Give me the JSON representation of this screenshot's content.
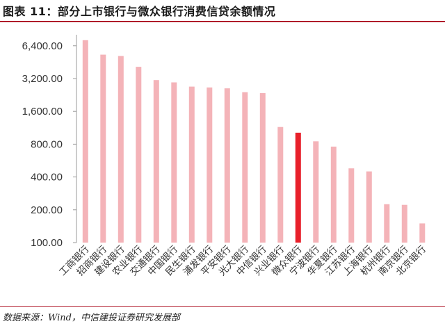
{
  "header": {
    "title": "图表 11：部分上市银行与微众银行消费信贷余额情况"
  },
  "footer": {
    "source": "数据来源：Wind，中信建投证券研究发展部"
  },
  "colors": {
    "bar": "#f4b3b8",
    "highlight": "#e8202a",
    "accent": "#b0192a",
    "axis": "#999999"
  },
  "chart_data": {
    "type": "bar",
    "title": "",
    "xlabel": "",
    "ylabel": "",
    "y_scale": "log2",
    "ylim": [
      100,
      8000
    ],
    "y_ticks": [
      100,
      200,
      400,
      800,
      1600,
      3200,
      6400
    ],
    "y_tick_labels": [
      "100.00",
      "200.00",
      "400.00",
      "800.00",
      "1,600.00",
      "3,200.00",
      "6,400.00"
    ],
    "grid": false,
    "highlight_category": "微众银行",
    "categories": [
      "工商银行",
      "招商银行",
      "建设银行",
      "农业银行",
      "交通银行",
      "中国银行",
      "民生银行",
      "浦发银行",
      "平安银行",
      "光大银行",
      "中信银行",
      "兴业银行",
      "微众银行",
      "宁波银行",
      "华夏银行",
      "江苏银行",
      "上海银行",
      "杭州银行",
      "南京银行",
      "北京银行"
    ],
    "values": [
      7200,
      5300,
      5150,
      4100,
      3100,
      2950,
      2700,
      2650,
      2600,
      2400,
      2350,
      1150,
      1020,
      850,
      760,
      480,
      450,
      225,
      222,
      150
    ]
  }
}
